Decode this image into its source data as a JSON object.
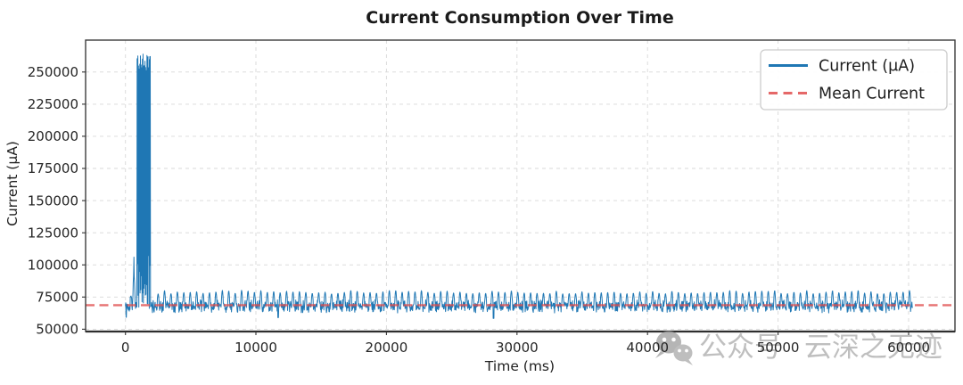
{
  "chart_data": {
    "type": "line",
    "title": "Current Consumption Over Time",
    "xlabel": "Time (ms)",
    "ylabel": "Current (μA)",
    "xlim": [
      -3050,
      63550
    ],
    "ylim": [
      48200,
      274800
    ],
    "xticks": [
      0,
      10000,
      20000,
      30000,
      40000,
      50000,
      60000
    ],
    "yticks": [
      50000,
      75000,
      100000,
      125000,
      150000,
      175000,
      200000,
      225000,
      250000
    ],
    "grid": {
      "visible": true,
      "style": "dashed",
      "color": "#d8d8d8"
    },
    "axis": {
      "spine_color": "#3c3c3c",
      "bottom_spine_color": "#2e2e2e",
      "tick_color": "#333333"
    },
    "legend": {
      "position": "upper right",
      "entries": [
        {
          "label": "Current (μA)",
          "color": "#1f77b4",
          "line": "solid"
        },
        {
          "label": "Mean Current",
          "color": "#e04e4e",
          "line": "dashed"
        }
      ]
    },
    "mean_line": {
      "label": "Mean Current",
      "value": 68700,
      "color": "#e04e4e",
      "style": "dashed",
      "opacity": 0.8
    },
    "series": [
      {
        "name": "Current (μA)",
        "color": "#1f77b4",
        "t_start_ms": 0,
        "t_end_ms": 60300,
        "sample_step_ms": 25,
        "baseline": {
          "min": 62300,
          "max": 73200
        },
        "periodic_bursts": {
          "first_ms": 2430,
          "period_ms": 492,
          "duration_ms": 150,
          "peak_min": 77500,
          "peak_max": 80200
        },
        "startup_spike": {
          "start_ms": 890,
          "end_ms": 1905,
          "high_min": 250500,
          "high_max": 264000,
          "low_min": 63000,
          "low_max": 108000,
          "peak": 264000
        },
        "pre_spike": {
          "start_ms": 545,
          "end_ms": 760,
          "peak_ms": 650,
          "peak_value": 106500
        },
        "early_burst": {
          "t_ms": 420,
          "peak": 76000,
          "duration_ms": 120
        },
        "dips": [
          {
            "t_ms": 60,
            "value": 59300
          },
          {
            "t_ms": 11700,
            "value": 59000
          },
          {
            "t_ms": 28200,
            "value": 58400
          }
        ]
      }
    ]
  },
  "watermark": {
    "icon": "wechat-icon",
    "text_left": "公众号",
    "text_right": "云深之无迹",
    "color": "#b5b5b5"
  }
}
